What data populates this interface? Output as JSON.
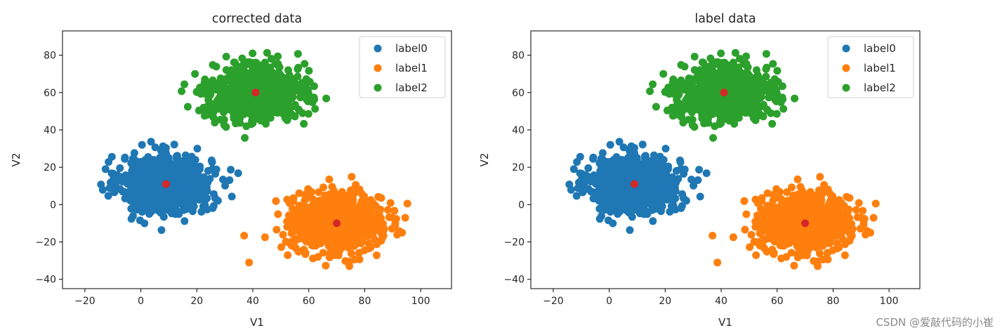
{
  "chart_data": [
    {
      "type": "scatter",
      "title": "corrected data",
      "xlabel": "V1",
      "ylabel": "V2",
      "xlim": [
        -28,
        111
      ],
      "ylim": [
        -45,
        93
      ],
      "xticks": [
        -20,
        0,
        20,
        40,
        60,
        80,
        100
      ],
      "yticks": [
        -40,
        -20,
        0,
        20,
        40,
        60,
        80
      ],
      "grid": false,
      "legend_position": "top-right",
      "series": [
        {
          "name": "label0",
          "color": "#1f77b4",
          "center": [
            9,
            11
          ],
          "spread": [
            8,
            7.5
          ],
          "extent": {
            "x": [
              -23,
              39
            ],
            "y": [
              -22,
              40
            ]
          }
        },
        {
          "name": "label1",
          "color": "#ff7f0e",
          "center": [
            70,
            -10
          ],
          "spread": [
            8,
            7.5
          ],
          "extent": {
            "x": [
              35,
              105
            ],
            "y": [
              -39,
              27
            ]
          }
        },
        {
          "name": "label2",
          "color": "#2ca02c",
          "center": [
            41,
            60
          ],
          "spread": [
            8,
            7.5
          ],
          "extent": {
            "x": [
              10,
              72
            ],
            "y": [
              27,
              87
            ]
          }
        }
      ],
      "centroids": {
        "color": "#d62728",
        "points": [
          [
            9,
            11
          ],
          [
            70,
            -10
          ],
          [
            41,
            60
          ]
        ]
      }
    },
    {
      "type": "scatter",
      "title": "label data",
      "xlabel": "V1",
      "ylabel": "V2",
      "xlim": [
        -28,
        111
      ],
      "ylim": [
        -45,
        93
      ],
      "xticks": [
        -20,
        0,
        20,
        40,
        60,
        80,
        100
      ],
      "yticks": [
        -40,
        -20,
        0,
        20,
        40,
        60,
        80
      ],
      "grid": false,
      "legend_position": "top-right",
      "series": [
        {
          "name": "label0",
          "color": "#1f77b4",
          "center": [
            9,
            11
          ],
          "spread": [
            8,
            7.5
          ],
          "extent": {
            "x": [
              -23,
              39
            ],
            "y": [
              -22,
              40
            ]
          }
        },
        {
          "name": "label1",
          "color": "#ff7f0e",
          "center": [
            70,
            -10
          ],
          "spread": [
            8,
            7.5
          ],
          "extent": {
            "x": [
              35,
              105
            ],
            "y": [
              -39,
              27
            ]
          }
        },
        {
          "name": "label2",
          "color": "#2ca02c",
          "center": [
            41,
            60
          ],
          "spread": [
            8,
            7.5
          ],
          "extent": {
            "x": [
              10,
              72
            ],
            "y": [
              27,
              87
            ]
          }
        }
      ],
      "centroids": {
        "color": "#d62728",
        "points": [
          [
            9,
            11
          ],
          [
            70,
            -10
          ],
          [
            41,
            60
          ]
        ]
      }
    }
  ],
  "watermark": "CSDN @爱敲代码的小崔"
}
